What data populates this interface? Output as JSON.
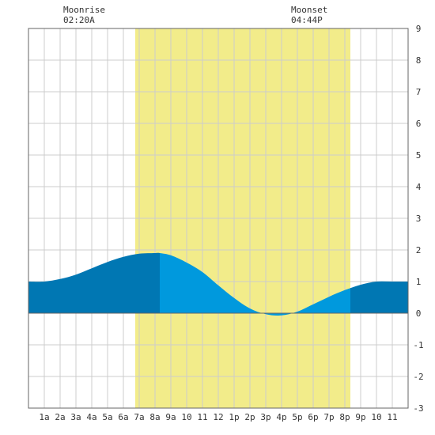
{
  "chart_data": {
    "type": "area",
    "title": "",
    "xlabel": "",
    "ylabel": "",
    "x_ticks": [
      "1a",
      "2a",
      "3a",
      "4a",
      "5a",
      "6a",
      "7a",
      "8a",
      "9a",
      "10",
      "11",
      "12",
      "1p",
      "2p",
      "3p",
      "4p",
      "5p",
      "6p",
      "7p",
      "8p",
      "9p",
      "10",
      "11"
    ],
    "ylim": [
      -3,
      9
    ],
    "y_ticks": [
      "9",
      "8",
      "7",
      "6",
      "5",
      "4",
      "3",
      "2",
      "1",
      "0",
      "-1",
      "-2",
      "-3"
    ],
    "xlim_hours": [
      0,
      24
    ],
    "grid": true,
    "daylight_hours": [
      6.75,
      20.35
    ],
    "moon_events": [
      {
        "label": "Moonrise",
        "time": "02:20A",
        "hour": 2.33
      },
      {
        "label": "Moonset",
        "time": "04:44P",
        "hour": 16.73
      }
    ],
    "series": [
      {
        "x": [
          0,
          1,
          2,
          3,
          4,
          5,
          6,
          7,
          8,
          8.3,
          9,
          10,
          11,
          12,
          13,
          14,
          15,
          16,
          17,
          18,
          19,
          20,
          21,
          22,
          23,
          24
        ],
        "y": [
          1.0,
          1.0,
          1.08,
          1.22,
          1.42,
          1.62,
          1.78,
          1.88,
          1.9,
          1.9,
          1.83,
          1.6,
          1.3,
          0.88,
          0.48,
          0.15,
          -0.03,
          -0.07,
          0.05,
          0.28,
          0.52,
          0.73,
          0.9,
          1.0,
          1.0,
          1.0
        ]
      }
    ],
    "colors": {
      "daylight": "#f2ec8a",
      "tide_night": "#0077b3",
      "tide_day": "#0099dd",
      "grid": "#cccccc",
      "zero_line": "#666666"
    }
  }
}
